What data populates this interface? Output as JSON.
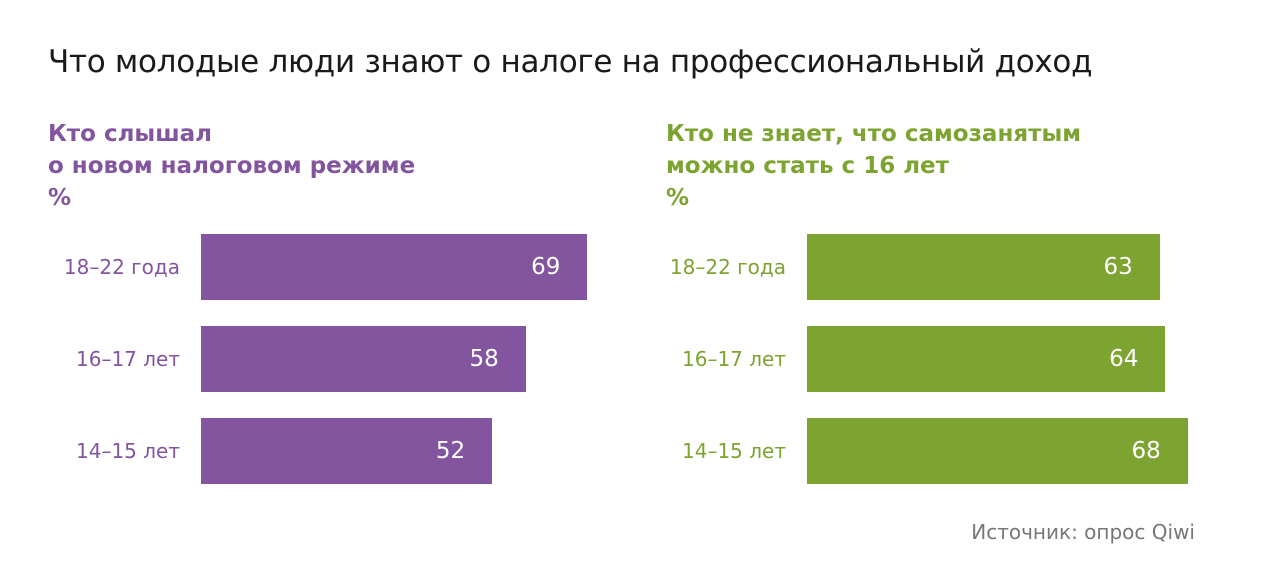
{
  "title": "Что молодые люди знают о налоге на профессиональный доход",
  "source": "Источник: опрос Qiwi",
  "chart_data": [
    {
      "type": "bar",
      "orientation": "horizontal",
      "title_lines": [
        "Кто слышал",
        "о новом налоговом режиме",
        "%"
      ],
      "categories": [
        "18–22 года",
        "16–17 лет",
        "14–15 лет"
      ],
      "values": [
        69,
        58,
        52
      ],
      "color": "#83559f",
      "unit": "%"
    },
    {
      "type": "bar",
      "orientation": "horizontal",
      "title_lines": [
        "Кто не знает, что самозанятым",
        "можно стать с 16 лет",
        "%"
      ],
      "categories": [
        "18–22 года",
        "16–17 лет",
        "14–15 лет"
      ],
      "values": [
        63,
        64,
        68
      ],
      "color": "#7da331",
      "unit": "%"
    }
  ]
}
